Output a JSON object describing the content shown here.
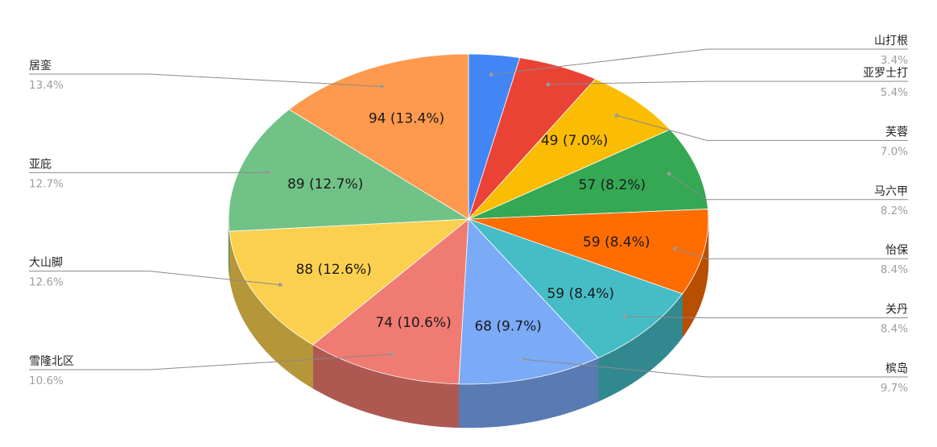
{
  "chart_data": {
    "type": "pie",
    "style": "3d",
    "start_angle_deg": 0,
    "direction": "clockwise",
    "slices": [
      {
        "name": "山打根",
        "value": 24,
        "percent_label": "3.4%",
        "slice_label": "",
        "color": "#4285f4",
        "side": "right"
      },
      {
        "name": "亚罗士打",
        "value": 38,
        "percent_label": "5.4%",
        "slice_label": "",
        "color": "#ea4335",
        "side": "right"
      },
      {
        "name": "芙蓉",
        "value": 49,
        "percent_label": "7.0%",
        "slice_label": "49 (7.0%)",
        "color": "#fbbc04",
        "side": "right"
      },
      {
        "name": "马六甲",
        "value": 57,
        "percent_label": "8.2%",
        "slice_label": "57 (8.2%)",
        "color": "#34a853",
        "side": "right"
      },
      {
        "name": "怡保",
        "value": 59,
        "percent_label": "8.4%",
        "slice_label": "59 (8.4%)",
        "color": "#ff6d01",
        "side": "right"
      },
      {
        "name": "关丹",
        "value": 59,
        "percent_label": "8.4%",
        "slice_label": "59 (8.4%)",
        "color": "#46bdc6",
        "side": "right"
      },
      {
        "name": "槟岛",
        "value": 68,
        "percent_label": "9.7%",
        "slice_label": "68 (9.7%)",
        "color": "#7baaf7",
        "side": "right"
      },
      {
        "name": "雪隆北区",
        "value": 74,
        "percent_label": "10.6%",
        "slice_label": "74 (10.6%)",
        "color": "#f07b72",
        "side": "left"
      },
      {
        "name": "大山脚",
        "value": 88,
        "percent_label": "12.6%",
        "slice_label": "88 (12.6%)",
        "color": "#fcd04f",
        "side": "left"
      },
      {
        "name": "亚庇",
        "value": 89,
        "percent_label": "12.7%",
        "slice_label": "89 (12.7%)",
        "color": "#71c287",
        "side": "left"
      },
      {
        "name": "居銮",
        "value": 94,
        "percent_label": "13.4%",
        "slice_label": "94 (13.4%)",
        "color": "#ff994d",
        "side": "left"
      }
    ],
    "legend_placement": "labels on both sides with leader lines"
  }
}
